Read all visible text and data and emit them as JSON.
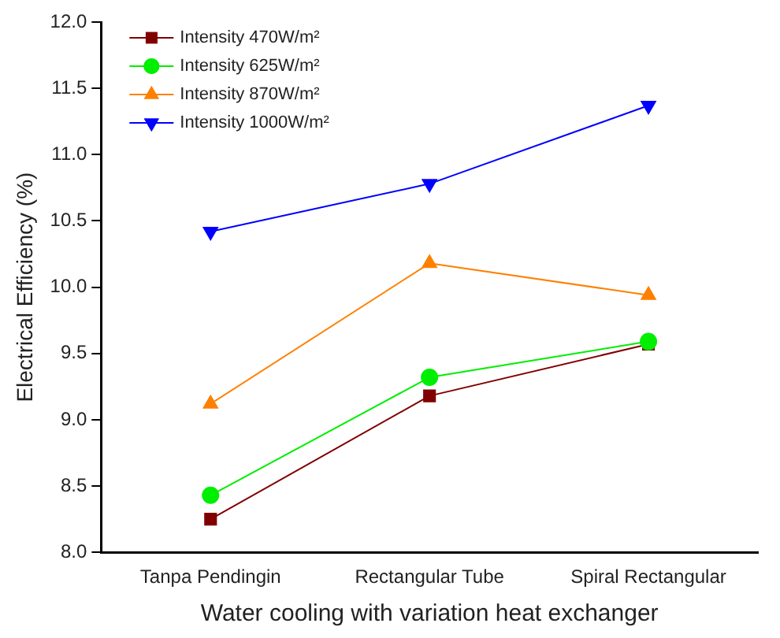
{
  "chart_data": {
    "type": "line",
    "xlabel": "Water cooling with variation heat exchanger",
    "ylabel": "Electrical Efficiency (%)",
    "categories": [
      "Tanpa Pendingin",
      "Rectangular Tube",
      "Spiral Rectangular"
    ],
    "series": [
      {
        "name": "Intensity 470W/m²",
        "color": "#800000",
        "marker": "square",
        "values": [
          8.25,
          9.18,
          9.57
        ]
      },
      {
        "name": "Intensity 625W/m²",
        "color": "#00ee00",
        "marker": "circle",
        "values": [
          8.43,
          9.32,
          9.59
        ]
      },
      {
        "name": "Intensity 870W/m²",
        "color": "#ff8000",
        "marker": "triangle",
        "values": [
          9.12,
          10.18,
          9.94
        ]
      },
      {
        "name": "Intensity 1000W/m²",
        "color": "#0000ff",
        "marker": "triangle-down",
        "values": [
          10.42,
          10.78,
          11.37
        ]
      }
    ],
    "ylim": [
      8.0,
      12.0
    ],
    "yticks": [
      {
        "value": 8,
        "label": "8.0"
      },
      {
        "value": 8.5,
        "label": "8.5"
      },
      {
        "value": 9,
        "label": "9.0"
      },
      {
        "value": 9.5,
        "label": "9.5"
      },
      {
        "value": 10,
        "label": "10.0"
      },
      {
        "value": 10.5,
        "label": "10.5"
      },
      {
        "value": 11,
        "label": "11.0"
      },
      {
        "value": 11.5,
        "label": "11.5"
      },
      {
        "value": 12,
        "label": "12.0"
      }
    ],
    "grid": false,
    "legend": "top left"
  }
}
